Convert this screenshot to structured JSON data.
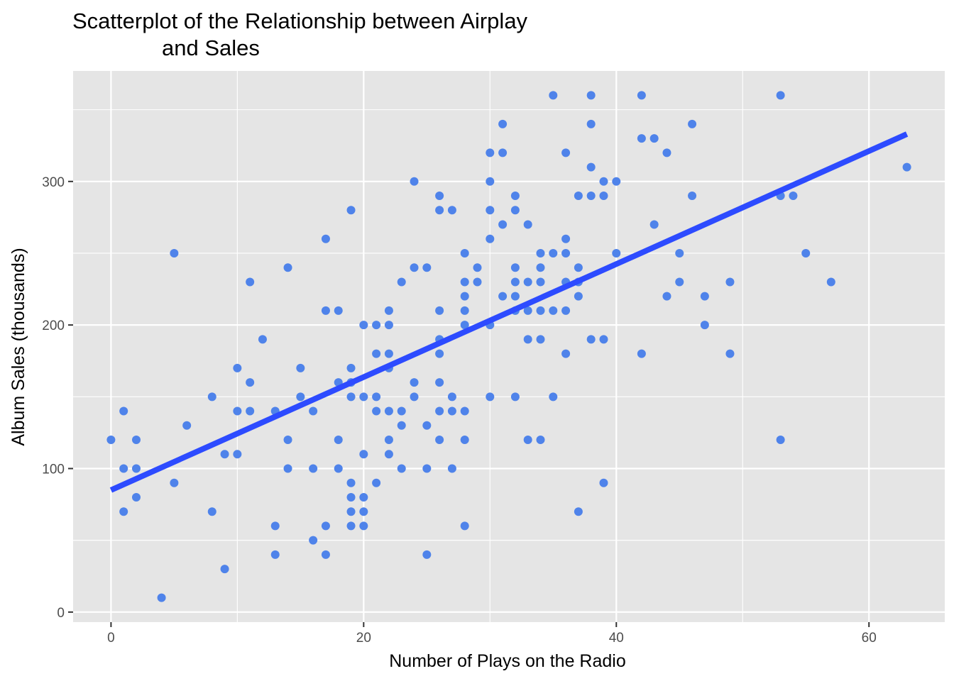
{
  "chart_data": {
    "type": "scatter",
    "title": "Scatterplot of the Relationship between Airplay and Sales",
    "title_lines": [
      "Scatterplot of the Relationship between Airplay",
      "and Sales"
    ],
    "xlabel": "Number of Plays on the Radio",
    "ylabel": "Album Sales (thousands)",
    "xlim": [
      -3,
      66
    ],
    "ylim": [
      -7,
      377
    ],
    "x_ticks": [
      0,
      20,
      40,
      60
    ],
    "y_ticks": [
      0,
      100,
      200,
      300
    ],
    "grid": true,
    "point_color": "#4F83EA",
    "panel_color": "#E5E5E5",
    "grid_color": "#FFFFFF",
    "fit_line": {
      "color": "#2D4BFF",
      "x": [
        0,
        63
      ],
      "y": [
        85,
        333
      ]
    },
    "points": [
      [
        0,
        120
      ],
      [
        1,
        140
      ],
      [
        1,
        100
      ],
      [
        1,
        70
      ],
      [
        2,
        120
      ],
      [
        2,
        100
      ],
      [
        2,
        80
      ],
      [
        4,
        10
      ],
      [
        5,
        250
      ],
      [
        5,
        90
      ],
      [
        6,
        130
      ],
      [
        8,
        150
      ],
      [
        8,
        70
      ],
      [
        9,
        110
      ],
      [
        9,
        30
      ],
      [
        10,
        170
      ],
      [
        10,
        140
      ],
      [
        10,
        110
      ],
      [
        11,
        230
      ],
      [
        11,
        160
      ],
      [
        11,
        140
      ],
      [
        12,
        190
      ],
      [
        13,
        140
      ],
      [
        13,
        60
      ],
      [
        13,
        40
      ],
      [
        14,
        240
      ],
      [
        14,
        120
      ],
      [
        14,
        100
      ],
      [
        15,
        170
      ],
      [
        15,
        150
      ],
      [
        16,
        140
      ],
      [
        16,
        100
      ],
      [
        16,
        50
      ],
      [
        17,
        260
      ],
      [
        17,
        210
      ],
      [
        17,
        60
      ],
      [
        17,
        40
      ],
      [
        18,
        210
      ],
      [
        18,
        160
      ],
      [
        18,
        120
      ],
      [
        18,
        100
      ],
      [
        19,
        280
      ],
      [
        19,
        170
      ],
      [
        19,
        160
      ],
      [
        19,
        150
      ],
      [
        19,
        90
      ],
      [
        19,
        80
      ],
      [
        19,
        70
      ],
      [
        19,
        60
      ],
      [
        20,
        200
      ],
      [
        20,
        150
      ],
      [
        20,
        110
      ],
      [
        20,
        80
      ],
      [
        20,
        70
      ],
      [
        20,
        60
      ],
      [
        21,
        200
      ],
      [
        21,
        180
      ],
      [
        21,
        150
      ],
      [
        21,
        140
      ],
      [
        21,
        90
      ],
      [
        22,
        210
      ],
      [
        22,
        200
      ],
      [
        22,
        180
      ],
      [
        22,
        170
      ],
      [
        22,
        140
      ],
      [
        22,
        120
      ],
      [
        22,
        110
      ],
      [
        23,
        230
      ],
      [
        23,
        140
      ],
      [
        23,
        130
      ],
      [
        23,
        100
      ],
      [
        24,
        300
      ],
      [
        24,
        240
      ],
      [
        24,
        160
      ],
      [
        24,
        150
      ],
      [
        25,
        240
      ],
      [
        25,
        130
      ],
      [
        25,
        100
      ],
      [
        25,
        40
      ],
      [
        26,
        290
      ],
      [
        26,
        280
      ],
      [
        26,
        210
      ],
      [
        26,
        190
      ],
      [
        26,
        180
      ],
      [
        26,
        160
      ],
      [
        26,
        140
      ],
      [
        26,
        120
      ],
      [
        27,
        280
      ],
      [
        27,
        150
      ],
      [
        27,
        140
      ],
      [
        27,
        100
      ],
      [
        28,
        250
      ],
      [
        28,
        230
      ],
      [
        28,
        220
      ],
      [
        28,
        210
      ],
      [
        28,
        200
      ],
      [
        28,
        140
      ],
      [
        28,
        120
      ],
      [
        28,
        60
      ],
      [
        29,
        240
      ],
      [
        29,
        230
      ],
      [
        30,
        320
      ],
      [
        30,
        300
      ],
      [
        30,
        280
      ],
      [
        30,
        260
      ],
      [
        30,
        200
      ],
      [
        30,
        150
      ],
      [
        31,
        340
      ],
      [
        31,
        320
      ],
      [
        31,
        270
      ],
      [
        31,
        220
      ],
      [
        32,
        290
      ],
      [
        32,
        280
      ],
      [
        32,
        240
      ],
      [
        32,
        230
      ],
      [
        32,
        220
      ],
      [
        32,
        210
      ],
      [
        32,
        150
      ],
      [
        33,
        270
      ],
      [
        33,
        230
      ],
      [
        33,
        210
      ],
      [
        33,
        190
      ],
      [
        33,
        120
      ],
      [
        34,
        250
      ],
      [
        34,
        240
      ],
      [
        34,
        230
      ],
      [
        34,
        210
      ],
      [
        34,
        190
      ],
      [
        34,
        120
      ],
      [
        35,
        360
      ],
      [
        35,
        250
      ],
      [
        35,
        210
      ],
      [
        35,
        150
      ],
      [
        36,
        320
      ],
      [
        36,
        260
      ],
      [
        36,
        250
      ],
      [
        36,
        230
      ],
      [
        36,
        210
      ],
      [
        36,
        180
      ],
      [
        37,
        290
      ],
      [
        37,
        240
      ],
      [
        37,
        230
      ],
      [
        37,
        220
      ],
      [
        37,
        70
      ],
      [
        38,
        360
      ],
      [
        38,
        340
      ],
      [
        38,
        310
      ],
      [
        38,
        290
      ],
      [
        38,
        190
      ],
      [
        39,
        300
      ],
      [
        39,
        290
      ],
      [
        39,
        190
      ],
      [
        39,
        90
      ],
      [
        40,
        300
      ],
      [
        40,
        250
      ],
      [
        42,
        360
      ],
      [
        42,
        330
      ],
      [
        42,
        180
      ],
      [
        43,
        330
      ],
      [
        43,
        270
      ],
      [
        44,
        320
      ],
      [
        44,
        220
      ],
      [
        45,
        250
      ],
      [
        45,
        230
      ],
      [
        46,
        340
      ],
      [
        46,
        290
      ],
      [
        47,
        220
      ],
      [
        47,
        200
      ],
      [
        49,
        230
      ],
      [
        49,
        180
      ],
      [
        53,
        360
      ],
      [
        53,
        290
      ],
      [
        53,
        120
      ],
      [
        54,
        290
      ],
      [
        55,
        250
      ],
      [
        57,
        230
      ],
      [
        63,
        310
      ]
    ]
  }
}
